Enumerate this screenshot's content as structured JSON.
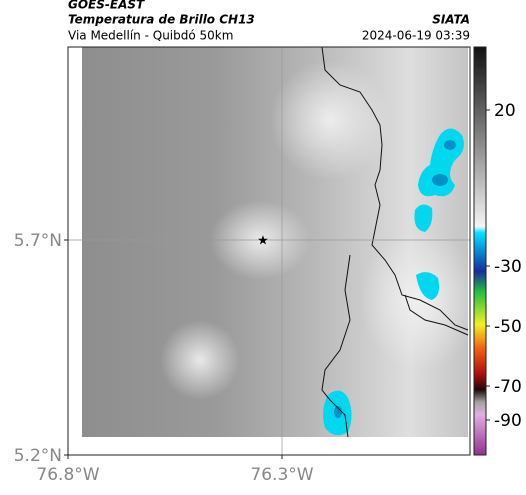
{
  "header": {
    "satellite": "GOES-EAST",
    "product": "Temperatura de Brillo CH13",
    "region": "Via Medellín - Quibdó 50km",
    "source": "SIATA",
    "timestamp": "2024-06-19 03:39"
  },
  "map": {
    "lat_labels": [
      "5.7°N",
      "5.2°N"
    ],
    "lon_labels": [
      "76.8°W",
      "76.3°W"
    ]
  },
  "colorbar": {
    "tick_labels": [
      "20",
      "-30",
      "-50",
      "-70",
      "-90"
    ]
  }
}
